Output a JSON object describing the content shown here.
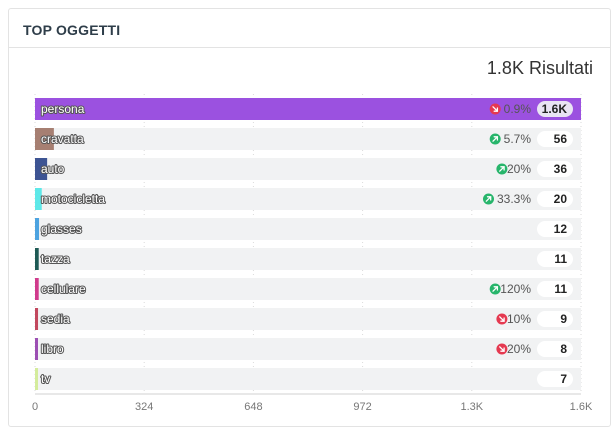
{
  "panel": {
    "title": "TOP OGGETTI",
    "results_value": "1.8K",
    "results_label": "Risultati"
  },
  "chart_data": {
    "type": "bar",
    "orientation": "horizontal",
    "xlim": [
      0,
      1620
    ],
    "x_ticks": [
      0,
      324,
      648,
      972,
      1296,
      1620
    ],
    "x_tick_labels": [
      "0",
      "324",
      "648",
      "972",
      "1.3K",
      "1.6K"
    ],
    "grid": true,
    "bars": [
      {
        "label": "persona",
        "value": 1620,
        "count_label": "1.6K",
        "change": "0.9%",
        "trend": "down",
        "color": "#9b51e0",
        "highlight": true
      },
      {
        "label": "cravatta",
        "value": 56,
        "count_label": "56",
        "change": "5.7%",
        "trend": "up",
        "color": "#a67f72"
      },
      {
        "label": "auto",
        "value": 36,
        "count_label": "36",
        "change": "20%",
        "trend": "up",
        "color": "#3d5493"
      },
      {
        "label": "motocicletta",
        "value": 20,
        "count_label": "20",
        "change": "33.3%",
        "trend": "up",
        "color": "#5ee8e8"
      },
      {
        "label": "glasses",
        "value": 12,
        "count_label": "12",
        "change": "",
        "trend": "",
        "color": "#4da3e0"
      },
      {
        "label": "tazza",
        "value": 11,
        "count_label": "11",
        "change": "",
        "trend": "",
        "color": "#1e5a55"
      },
      {
        "label": "cellulare",
        "value": 11,
        "count_label": "11",
        "change": "120%",
        "trend": "up",
        "color": "#d03a8c"
      },
      {
        "label": "sedia",
        "value": 9,
        "count_label": "9",
        "change": "10%",
        "trend": "down",
        "color": "#c2485e"
      },
      {
        "label": "libro",
        "value": 8,
        "count_label": "8",
        "change": "20%",
        "trend": "down",
        "color": "#9c4fb3"
      },
      {
        "label": "tv",
        "value": 7,
        "count_label": "7",
        "change": "",
        "trend": "",
        "color": "#d4ec9c"
      }
    ],
    "colors": {
      "up": "#27b56b",
      "down": "#e53950",
      "track": "#f1f2f3"
    }
  }
}
